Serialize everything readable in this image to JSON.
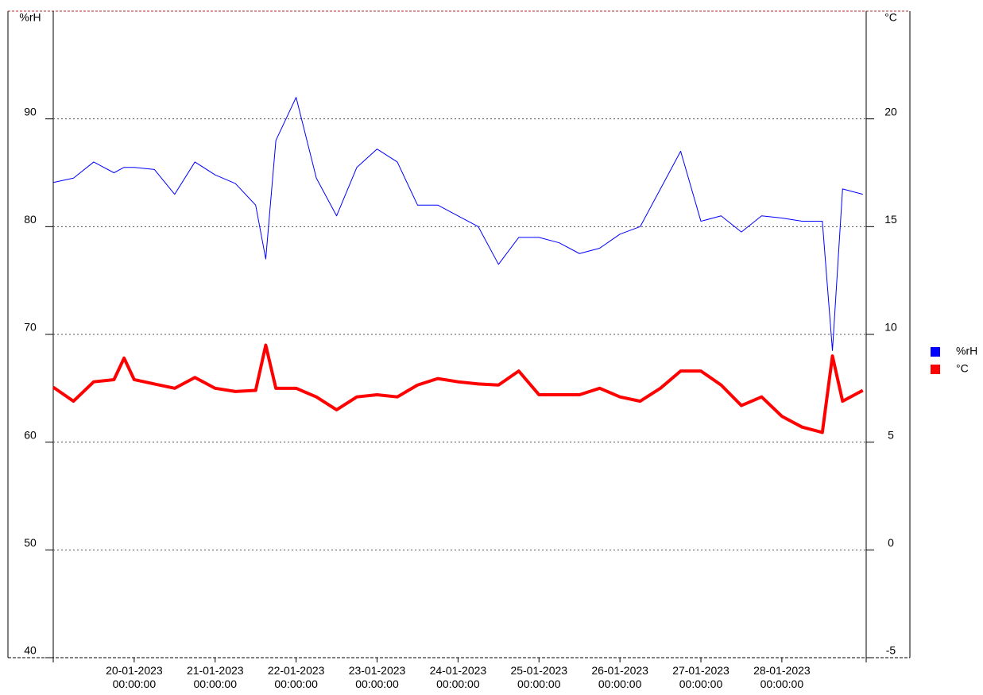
{
  "chart_data": {
    "type": "line",
    "y_label": "%rH",
    "y2_label": "°C",
    "x": [
      "19-01-2023 00:00:00",
      "19-01-2023 06:00:00",
      "19-01-2023 12:00:00",
      "19-01-2023 18:00:00",
      "19-01-2023 21:00:00",
      "20-01-2023 00:00:00",
      "20-01-2023 06:00:00",
      "20-01-2023 12:00:00",
      "20-01-2023 18:00:00",
      "21-01-2023 00:00:00",
      "21-01-2023 06:00:00",
      "21-01-2023 12:00:00",
      "21-01-2023 15:00:00",
      "21-01-2023 18:00:00",
      "22-01-2023 00:00:00",
      "22-01-2023 06:00:00",
      "22-01-2023 12:00:00",
      "22-01-2023 18:00:00",
      "23-01-2023 00:00:00",
      "23-01-2023 06:00:00",
      "23-01-2023 12:00:00",
      "23-01-2023 18:00:00",
      "24-01-2023 00:00:00",
      "24-01-2023 06:00:00",
      "24-01-2023 12:00:00",
      "24-01-2023 18:00:00",
      "25-01-2023 00:00:00",
      "25-01-2023 06:00:00",
      "25-01-2023 12:00:00",
      "25-01-2023 18:00:00",
      "26-01-2023 00:00:00",
      "26-01-2023 06:00:00",
      "26-01-2023 12:00:00",
      "26-01-2023 18:00:00",
      "27-01-2023 00:00:00",
      "27-01-2023 06:00:00",
      "27-01-2023 12:00:00",
      "27-01-2023 18:00:00",
      "28-01-2023 00:00:00",
      "28-01-2023 06:00:00",
      "28-01-2023 12:00:00",
      "28-01-2023 15:00:00",
      "28-01-2023 18:00:00",
      "29-01-2023 00:00:00"
    ],
    "series": [
      {
        "name": "%rH",
        "color": "#0000ff",
        "width": 1,
        "values": [
          84.1,
          84.5,
          86,
          85,
          85.5,
          85.5,
          85.3,
          83,
          86,
          84.8,
          84,
          82,
          77,
          88,
          92,
          84.5,
          81,
          85.5,
          87.2,
          86,
          82,
          82,
          81,
          80,
          76.5,
          79,
          79,
          78.5,
          77.5,
          78,
          79.3,
          80,
          83.5,
          87,
          80.5,
          81,
          79.5,
          81,
          80.8,
          80.5,
          80.5,
          68.5,
          83.5,
          83
        ]
      },
      {
        "name": "°C",
        "color": "#ff0000",
        "width": 4,
        "axis": "y2",
        "values": [
          7.55,
          6.9,
          7.8,
          7.9,
          8.9,
          7.9,
          7.7,
          7.5,
          8.0,
          7.5,
          7.35,
          7.4,
          9.5,
          7.5,
          7.5,
          7.1,
          6.5,
          7.1,
          7.2,
          7.1,
          7.65,
          7.95,
          7.8,
          7.7,
          7.65,
          8.3,
          7.2,
          7.2,
          7.2,
          7.5,
          7.1,
          6.9,
          7.5,
          8.3,
          8.3,
          7.65,
          6.7,
          7.1,
          6.2,
          5.7,
          5.45,
          9.0,
          6.9,
          7.4
        ]
      }
    ],
    "xlim": [
      "19-01-2023 00:00:00",
      "29-01-2023 01:00:00"
    ],
    "xticks": [
      "20-01-2023 00:00:00",
      "21-01-2023 00:00:00",
      "22-01-2023 00:00:00",
      "23-01-2023 00:00:00",
      "24-01-2023 00:00:00",
      "25-01-2023 00:00:00",
      "26-01-2023 00:00:00",
      "27-01-2023 00:00:00",
      "28-01-2023 00:00:00"
    ],
    "ylim": [
      40,
      100
    ],
    "yticks": [
      40,
      50,
      60,
      70,
      80,
      90
    ],
    "y2lim": [
      -5,
      25
    ],
    "y2ticks": [
      -5,
      0,
      5,
      10,
      15,
      20
    ],
    "grid": true,
    "legend": "right"
  }
}
